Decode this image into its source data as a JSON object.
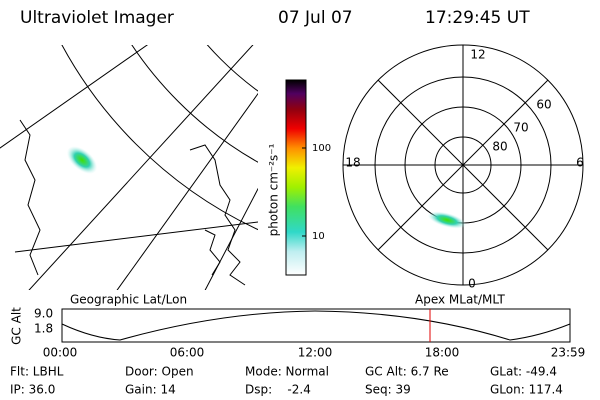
{
  "header": {
    "title": "Ultraviolet Imager",
    "date": "07 Jul 07",
    "time": "17:29:45 UT"
  },
  "colorbar": {
    "label": "photon cm⁻²s⁻¹",
    "ticks": [
      "100",
      "10"
    ]
  },
  "polar": {
    "mlt_labels": [
      "12",
      "6",
      "0",
      "18"
    ],
    "lat_labels": [
      "60",
      "70",
      "80"
    ]
  },
  "timeline": {
    "left_label": "Geographic Lat/Lon",
    "right_label": "Apex MLat/MLT",
    "axis_label": "GC Alt",
    "y_labels": [
      "9.0",
      "1.8"
    ],
    "x_labels": [
      "00:00",
      "06:00",
      "12:00",
      "18:00",
      "23:59"
    ]
  },
  "status": {
    "rows": [
      [
        "Flt: LBHL",
        "Door: Open",
        "Mode: Normal",
        "GC Alt: 6.7 Re",
        "GLat: -49.4"
      ],
      [
        "IP: 36.0",
        "Gain: 14",
        "Dsp:    -2.4",
        "Seq: 39",
        "GLon: 117.4"
      ]
    ]
  }
}
